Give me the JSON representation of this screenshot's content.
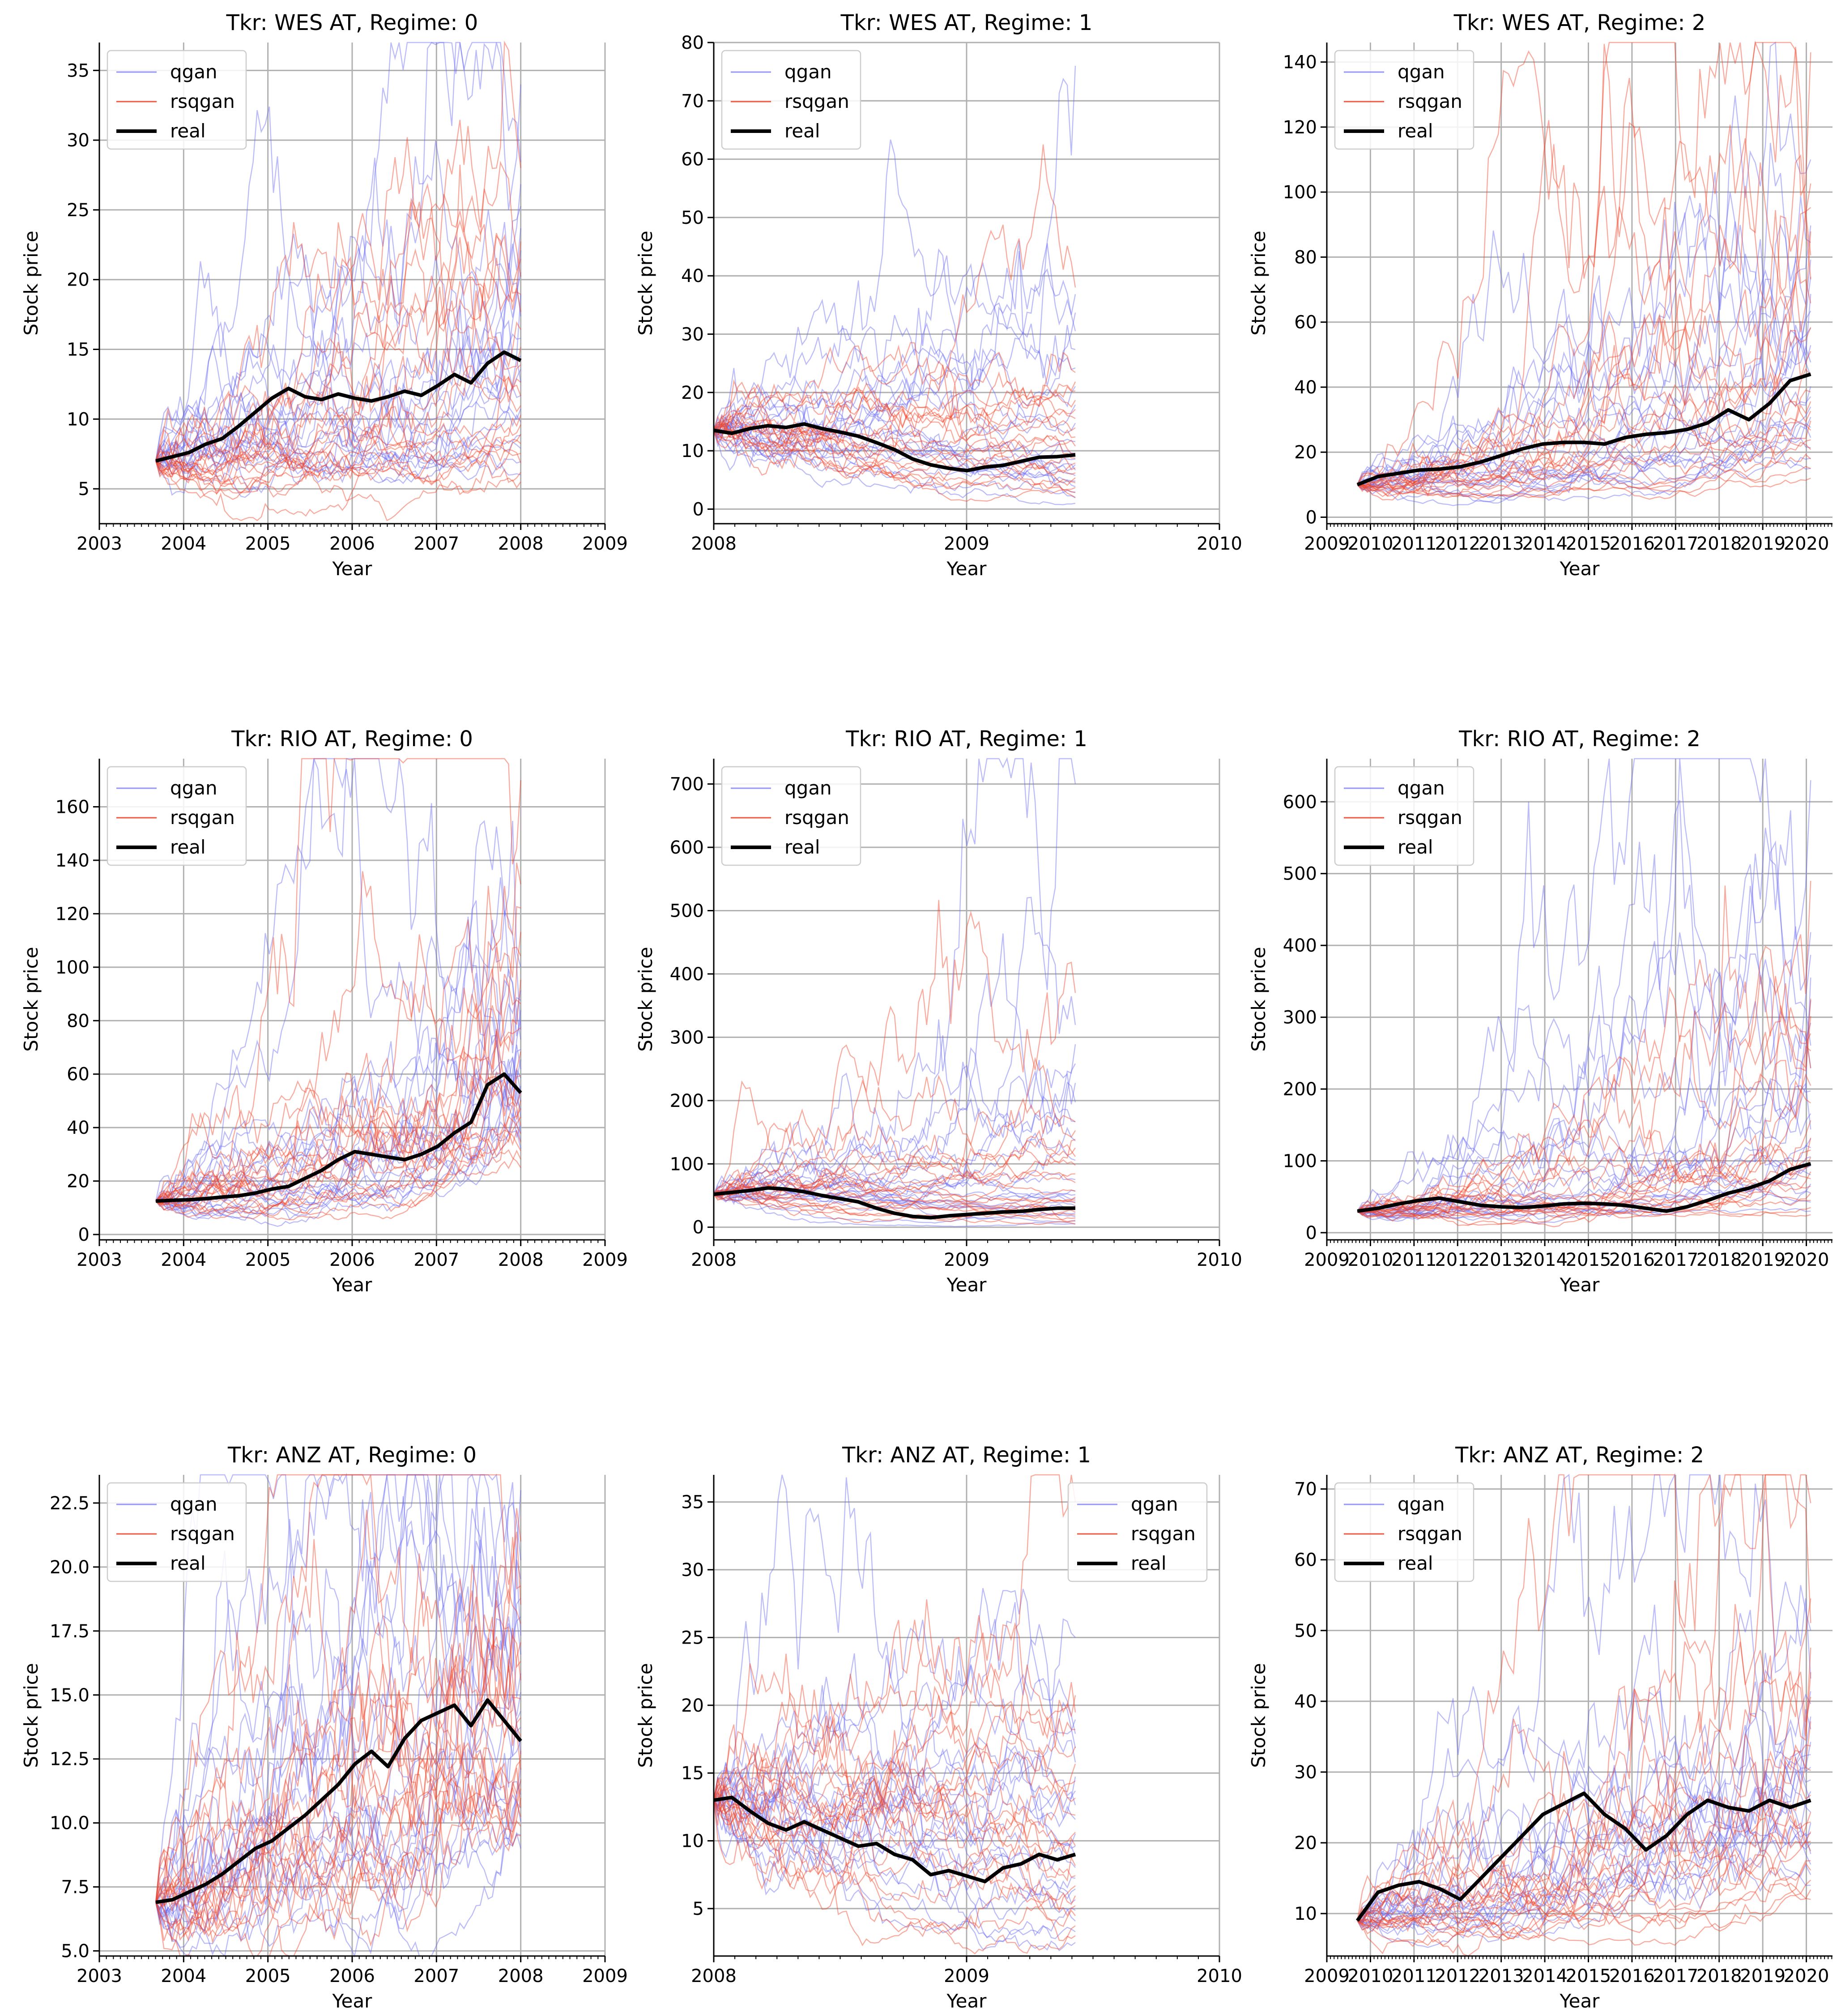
{
  "legend": {
    "qgan": "qgan",
    "rsqgan": "rsqgan",
    "real": "real"
  },
  "colors": {
    "qgan": "#6a6af2",
    "rsqgan": "#f0452a",
    "real": "#000000",
    "grid": "#b0b0b0"
  },
  "chart_data": [
    {
      "type": "line",
      "title": "Tkr: WES AT, Regime: 0",
      "xlabel": "Year",
      "ylabel": "Stock price",
      "xlim": [
        2003,
        2009
      ],
      "xticks": [
        2003,
        2004,
        2005,
        2006,
        2007,
        2008,
        2009
      ],
      "ylim": [
        2.5,
        37
      ],
      "yticks": [
        5,
        10,
        15,
        20,
        25,
        30,
        35
      ],
      "ytick_labels": [
        "5",
        "10",
        "15",
        "20",
        "25",
        "30",
        "35"
      ],
      "legend_loc": "upper-left",
      "grid": true,
      "x_start": 2003.67,
      "x_end": 2008.0,
      "real": [
        7.0,
        7.3,
        7.6,
        8.2,
        8.6,
        9.5,
        10.5,
        11.5,
        12.2,
        11.6,
        11.4,
        11.8,
        11.5,
        11.3,
        11.6,
        12.0,
        11.7,
        12.4,
        13.2,
        12.6,
        14.0,
        14.8,
        14.2
      ],
      "qgan_band": {
        "start": 7.0,
        "p50_end": 15.0,
        "p5_end": 6.0,
        "p95_end": 30.0,
        "max_end": 34.0
      },
      "rsqgan_band": {
        "start": 7.0,
        "p50_end": 12.0,
        "p5_end": 5.5,
        "p95_end": 24.0,
        "max_end": 28.0
      },
      "n_paths": 20
    },
    {
      "type": "line",
      "title": "Tkr: WES AT, Regime: 1",
      "xlabel": "Year",
      "ylabel": "Stock price",
      "xlim": [
        2008,
        2010
      ],
      "xticks": [
        2008,
        2009,
        2010
      ],
      "ylim": [
        -2.5,
        80
      ],
      "yticks": [
        0,
        10,
        20,
        30,
        40,
        50,
        60,
        70,
        80
      ],
      "ytick_labels": [
        "0",
        "10",
        "20",
        "30",
        "40",
        "50",
        "60",
        "70",
        "80"
      ],
      "legend_loc": "upper-left",
      "grid": true,
      "x_start": 2008.0,
      "x_end": 2009.43,
      "real": [
        13.5,
        13.0,
        13.8,
        14.3,
        14.0,
        14.6,
        13.8,
        13.2,
        12.5,
        11.4,
        10.2,
        8.6,
        7.6,
        7.0,
        6.6,
        7.2,
        7.5,
        8.2,
        8.9,
        9.0,
        9.3
      ],
      "qgan_band": {
        "start": 13.5,
        "p50_end": 10.0,
        "p5_end": 1.0,
        "p95_end": 40.0,
        "max_end": 76.0
      },
      "rsqgan_band": {
        "start": 13.5,
        "p50_end": 10.0,
        "p5_end": 2.0,
        "p95_end": 25.0,
        "max_end": 38.0
      },
      "n_paths": 20
    },
    {
      "type": "line",
      "title": "Tkr: WES AT, Regime: 2",
      "xlabel": "Year",
      "ylabel": "Stock price",
      "xlim": [
        2009,
        2020.6
      ],
      "xticks": [
        2009,
        2010,
        2011,
        2012,
        2013,
        2014,
        2015,
        2016,
        2017,
        2018,
        2019,
        2020
      ],
      "ylim": [
        -2,
        146
      ],
      "yticks": [
        0,
        20,
        40,
        60,
        80,
        100,
        120,
        140
      ],
      "ytick_labels": [
        "0",
        "20",
        "40",
        "60",
        "80",
        "100",
        "120",
        "140"
      ],
      "legend_loc": "upper-left",
      "grid": true,
      "x_start": 2009.7,
      "x_end": 2020.1,
      "real": [
        10.0,
        12.5,
        13.5,
        14.5,
        14.8,
        15.5,
        17.0,
        19.0,
        21.0,
        22.5,
        23.0,
        23.0,
        22.5,
        24.5,
        25.5,
        26.0,
        27.0,
        29.0,
        33.0,
        30.0,
        35.0,
        42.0,
        44.0
      ],
      "qgan_band": {
        "start": 10.0,
        "p50_end": 45.0,
        "p5_end": 15.0,
        "p95_end": 95.0,
        "max_end": 110.0
      },
      "rsqgan_band": {
        "start": 10.0,
        "p50_end": 40.0,
        "p5_end": 12.0,
        "p95_end": 110.0,
        "max_end": 143.0
      },
      "n_paths": 20
    },
    {
      "type": "line",
      "title": "Tkr: RIO AT, Regime: 0",
      "xlabel": "Year",
      "ylabel": "Stock price",
      "xlim": [
        2003,
        2009
      ],
      "xticks": [
        2003,
        2004,
        2005,
        2006,
        2007,
        2008,
        2009
      ],
      "ylim": [
        -2,
        178
      ],
      "yticks": [
        0,
        20,
        40,
        60,
        80,
        100,
        120,
        140,
        160
      ],
      "ytick_labels": [
        "0",
        "20",
        "40",
        "60",
        "80",
        "100",
        "120",
        "140",
        "160"
      ],
      "legend_loc": "upper-left",
      "grid": true,
      "x_start": 2003.67,
      "x_end": 2008.0,
      "real": [
        12.5,
        12.8,
        13.0,
        13.4,
        14.0,
        14.5,
        15.5,
        17.0,
        18.0,
        21.0,
        24.0,
        28.0,
        31.0,
        30.0,
        29.0,
        28.0,
        30.0,
        33.0,
        38.0,
        42.0,
        56.0,
        60.0,
        53.0
      ],
      "qgan_band": {
        "start": 12.5,
        "p50_end": 60.0,
        "p5_end": 32.0,
        "p95_end": 95.0,
        "max_end": 100.0
      },
      "rsqgan_band": {
        "start": 12.5,
        "p50_end": 55.0,
        "p5_end": 25.0,
        "p95_end": 140.0,
        "max_end": 170.0
      },
      "n_paths": 20
    },
    {
      "type": "line",
      "title": "Tkr: RIO AT, Regime: 1",
      "xlabel": "Year",
      "ylabel": "Stock price",
      "xlim": [
        2008,
        2010
      ],
      "xticks": [
        2008,
        2009,
        2010
      ],
      "ylim": [
        -20,
        740
      ],
      "yticks": [
        0,
        100,
        200,
        300,
        400,
        500,
        600,
        700
      ],
      "ytick_labels": [
        "0",
        "100",
        "200",
        "300",
        "400",
        "500",
        "600",
        "700"
      ],
      "legend_loc": "upper-left",
      "grid": true,
      "x_start": 2008.0,
      "x_end": 2009.43,
      "real": [
        52,
        55,
        58,
        62,
        60,
        56,
        50,
        45,
        40,
        30,
        22,
        17,
        15,
        18,
        20,
        22,
        24,
        25,
        28,
        30,
        30
      ],
      "qgan_band": {
        "start": 52,
        "p50_end": 60,
        "p5_end": 5,
        "p95_end": 350,
        "max_end": 700
      },
      "rsqgan_band": {
        "start": 52,
        "p50_end": 50,
        "p5_end": 5,
        "p95_end": 180,
        "max_end": 370
      },
      "n_paths": 20
    },
    {
      "type": "line",
      "title": "Tkr: RIO AT, Regime: 2",
      "xlabel": "Year",
      "ylabel": "Stock price",
      "xlim": [
        2009,
        2020.6
      ],
      "xticks": [
        2009,
        2010,
        2011,
        2012,
        2013,
        2014,
        2015,
        2016,
        2017,
        2018,
        2019,
        2020
      ],
      "ylim": [
        -10,
        660
      ],
      "yticks": [
        0,
        100,
        200,
        300,
        400,
        500,
        600
      ],
      "ytick_labels": [
        "0",
        "100",
        "200",
        "300",
        "400",
        "500",
        "600"
      ],
      "legend_loc": "upper-left",
      "grid": true,
      "x_start": 2009.7,
      "x_end": 2020.1,
      "real": [
        30,
        34,
        40,
        45,
        48,
        43,
        38,
        36,
        35,
        37,
        40,
        41,
        40,
        38,
        34,
        30,
        36,
        45,
        55,
        62,
        72,
        88,
        96
      ],
      "qgan_band": {
        "start": 30,
        "p50_end": 150,
        "p5_end": 30,
        "p95_end": 450,
        "max_end": 630
      },
      "rsqgan_band": {
        "start": 30,
        "p50_end": 120,
        "p5_end": 25,
        "p95_end": 350,
        "max_end": 490
      },
      "n_paths": 20
    },
    {
      "type": "line",
      "title": "Tkr: ANZ AT, Regime: 0",
      "xlabel": "Year",
      "ylabel": "Stock price",
      "xlim": [
        2003,
        2009
      ],
      "xticks": [
        2003,
        2004,
        2005,
        2006,
        2007,
        2008,
        2009
      ],
      "ylim": [
        4.8,
        23.6
      ],
      "yticks": [
        5.0,
        7.5,
        10.0,
        12.5,
        15.0,
        17.5,
        20.0,
        22.5
      ],
      "ytick_labels": [
        "5.0",
        "7.5",
        "10.0",
        "12.5",
        "15.0",
        "17.5",
        "20.0",
        "22.5"
      ],
      "legend_loc": "upper-left",
      "grid": true,
      "x_start": 2003.67,
      "x_end": 2008.0,
      "real": [
        6.9,
        7.0,
        7.3,
        7.6,
        8.0,
        8.5,
        9.0,
        9.3,
        9.8,
        10.3,
        10.9,
        11.5,
        12.3,
        12.8,
        12.2,
        13.3,
        14.0,
        14.3,
        14.6,
        13.8,
        14.8,
        14.0,
        13.2
      ],
      "qgan_band": {
        "start": 6.9,
        "p50_end": 14.0,
        "p5_end": 9.0,
        "p95_end": 21.0,
        "max_end": 23.0
      },
      "rsqgan_band": {
        "start": 6.9,
        "p50_end": 13.0,
        "p5_end": 9.5,
        "p95_end": 20.0,
        "max_end": 21.0
      },
      "n_paths": 20
    },
    {
      "type": "line",
      "title": "Tkr: ANZ AT, Regime: 1",
      "xlabel": "Year",
      "ylabel": "Stock price",
      "xlim": [
        2008,
        2010
      ],
      "xticks": [
        2008,
        2009,
        2010
      ],
      "ylim": [
        1.5,
        37
      ],
      "yticks": [
        5,
        10,
        15,
        20,
        25,
        30,
        35
      ],
      "ytick_labels": [
        "5",
        "10",
        "15",
        "20",
        "25",
        "30",
        "35"
      ],
      "legend_loc": "upper-right",
      "grid": true,
      "x_start": 2008.0,
      "x_end": 2009.43,
      "real": [
        13.0,
        13.2,
        12.2,
        11.3,
        10.8,
        11.4,
        10.8,
        10.2,
        9.6,
        9.8,
        9.0,
        8.6,
        7.5,
        7.8,
        7.4,
        7.0,
        8.0,
        8.3,
        9.0,
        8.6,
        9.0
      ],
      "qgan_band": {
        "start": 13.0,
        "p50_end": 10.0,
        "p5_end": 2.5,
        "p95_end": 20.0,
        "max_end": 25.0
      },
      "rsqgan_band": {
        "start": 13.0,
        "p50_end": 10.0,
        "p5_end": 3.0,
        "p95_end": 22.0,
        "max_end": 35.0
      },
      "n_paths": 20
    },
    {
      "type": "line",
      "title": "Tkr: ANZ AT, Regime: 2",
      "xlabel": "Year",
      "ylabel": "Stock price",
      "xlim": [
        2009,
        2020.6
      ],
      "xticks": [
        2009,
        2010,
        2011,
        2012,
        2013,
        2014,
        2015,
        2016,
        2017,
        2018,
        2019,
        2020
      ],
      "ylim": [
        4,
        72
      ],
      "yticks": [
        10,
        20,
        30,
        40,
        50,
        60,
        70
      ],
      "ytick_labels": [
        "10",
        "20",
        "30",
        "40",
        "50",
        "60",
        "70"
      ],
      "legend_loc": "upper-left",
      "grid": true,
      "x_start": 2009.7,
      "x_end": 2020.1,
      "real": [
        9.0,
        13.0,
        14.0,
        14.5,
        13.5,
        12.0,
        15.0,
        18.0,
        21.0,
        24.0,
        25.5,
        27.0,
        24.0,
        22.0,
        19.0,
        21.0,
        24.0,
        26.0,
        25.0,
        24.5,
        26.0,
        25.0,
        26.0
      ],
      "qgan_band": {
        "start": 9.0,
        "p50_end": 28.0,
        "p5_end": 14.0,
        "p95_end": 45.0,
        "max_end": 50.0
      },
      "rsqgan_band": {
        "start": 9.0,
        "p50_end": 25.0,
        "p5_end": 12.0,
        "p95_end": 58.0,
        "max_end": 68.0
      },
      "n_paths": 20
    }
  ]
}
